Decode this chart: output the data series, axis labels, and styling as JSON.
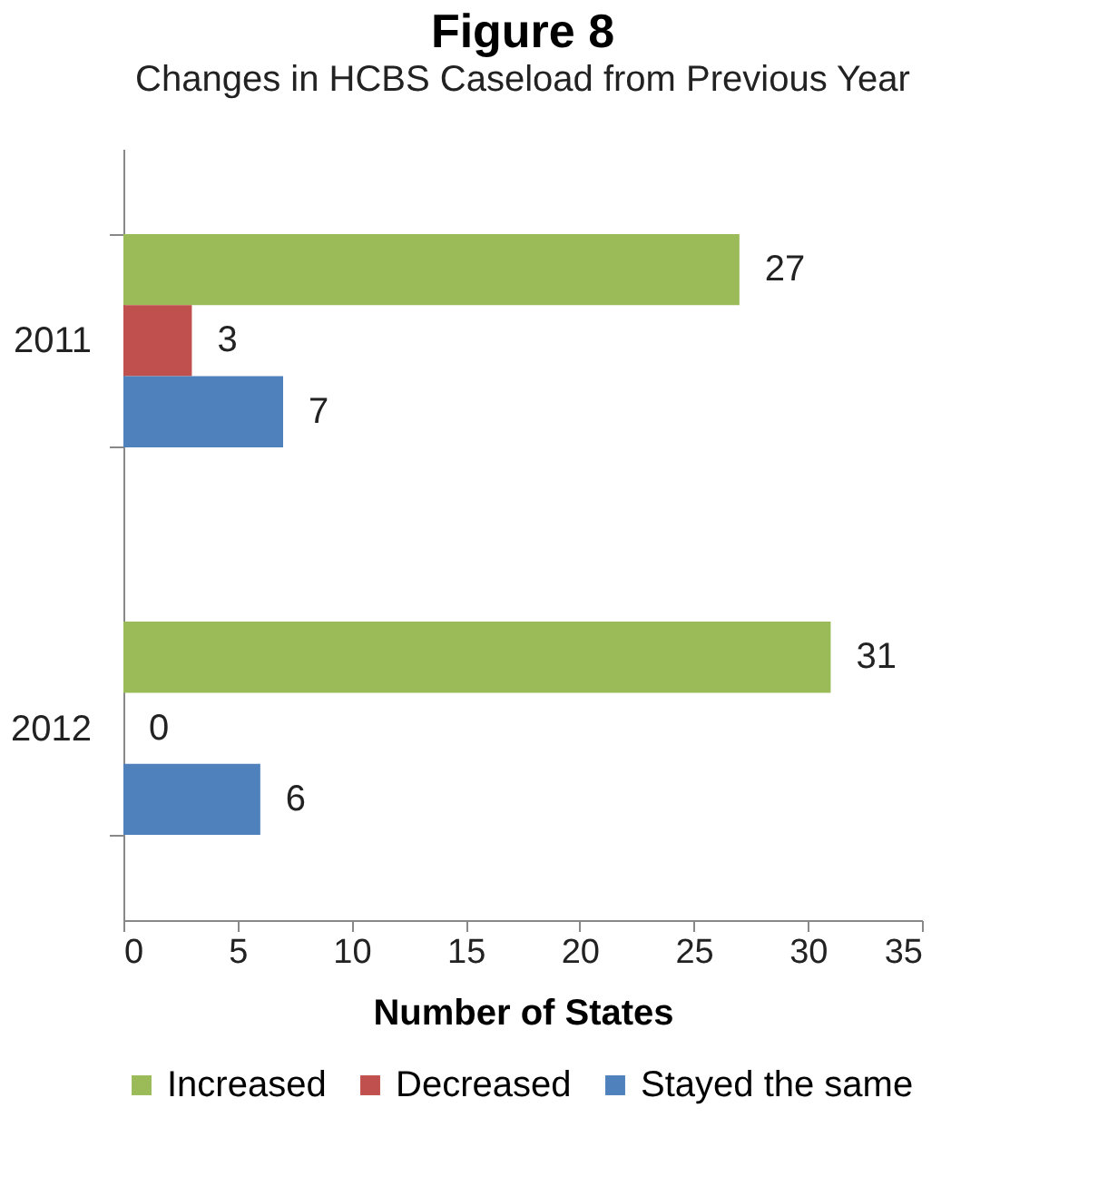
{
  "chart_data": {
    "type": "bar",
    "orientation": "horizontal",
    "title": "Figure 8",
    "subtitle": "Changes in HCBS Caseload from Previous Year",
    "xlabel": "Number of States",
    "categories": [
      "2011",
      "2012"
    ],
    "series": [
      {
        "name": "Increased",
        "color": "#9bbb59",
        "values": [
          27,
          31
        ]
      },
      {
        "name": "Decreased",
        "color": "#c0504d",
        "values": [
          3,
          0
        ]
      },
      {
        "name": "Stayed the same",
        "color": "#4f81bd",
        "values": [
          7,
          6
        ]
      }
    ],
    "xlim": [
      0,
      35
    ],
    "xticks": [
      0,
      5,
      10,
      15,
      20,
      25,
      30,
      35
    ],
    "data_labels": true,
    "grid": false,
    "legend": "bottom"
  }
}
